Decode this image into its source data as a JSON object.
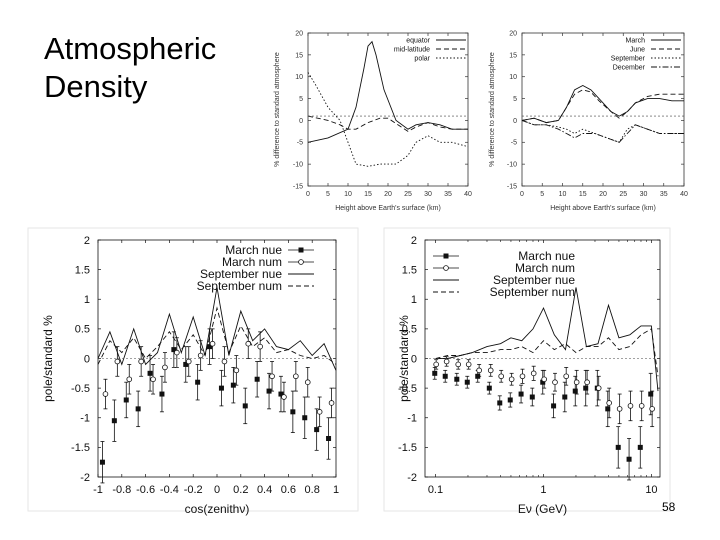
{
  "slide": {
    "title_line1": "Atmospheric",
    "title_line2": "Density",
    "page_number": "58"
  },
  "chart_data": [
    {
      "id": "latitude",
      "type": "line",
      "title": "",
      "xlabel": "Height above Earth's surface (km)",
      "ylabel": "% difference to standard atmosphere",
      "xlim": [
        0,
        40
      ],
      "ylim": [
        -15,
        20
      ],
      "xticks": [
        0,
        5,
        10,
        15,
        20,
        25,
        30,
        35,
        40
      ],
      "yticks": [
        -15,
        -10,
        -5,
        0,
        5,
        10,
        15,
        20
      ],
      "legend_position": "top-right",
      "series": [
        {
          "name": "equator",
          "style": "solid",
          "x": [
            0,
            5,
            10,
            12,
            14,
            15,
            16,
            17,
            19,
            22,
            25,
            27,
            30,
            33,
            36,
            40
          ],
          "y": [
            -5,
            -4,
            -2,
            3,
            12,
            17,
            18,
            15,
            7,
            0,
            -2,
            -1,
            -0.5,
            -1,
            -2,
            -2
          ]
        },
        {
          "name": "mid-latitude",
          "style": "dashed",
          "x": [
            0,
            5,
            8,
            10,
            12,
            15,
            18,
            20,
            25,
            27,
            30,
            33,
            36,
            40
          ],
          "y": [
            1,
            0,
            -1,
            -2,
            -2,
            -0.5,
            0.5,
            0.5,
            -2.5,
            -1.5,
            -0.5,
            -1.5,
            -2,
            -2
          ]
        },
        {
          "name": "polar",
          "style": "dotted",
          "x": [
            0,
            2,
            5,
            8,
            10,
            12,
            15,
            18,
            22,
            25,
            27,
            30,
            33,
            36,
            40
          ],
          "y": [
            11,
            8,
            3,
            0,
            -5,
            -10,
            -10.5,
            -10,
            -10,
            -8,
            -5,
            -3.5,
            -5,
            -5,
            -6
          ]
        },
        {
          "name": "",
          "style": "reference",
          "x": [
            0,
            40
          ],
          "y": [
            1,
            1
          ]
        }
      ]
    },
    {
      "id": "seasonal",
      "type": "line",
      "title": "",
      "xlabel": "Height above Earth's surface (km)",
      "ylabel": "% difference to standard atmosphere",
      "xlim": [
        0,
        40
      ],
      "ylim": [
        -15,
        20
      ],
      "xticks": [
        0,
        5,
        10,
        15,
        20,
        25,
        30,
        35,
        40
      ],
      "yticks": [
        -15,
        -10,
        -5,
        0,
        5,
        10,
        15,
        20
      ],
      "legend_position": "top-right",
      "series": [
        {
          "name": "March",
          "style": "solid",
          "x": [
            0,
            3,
            6,
            9,
            11,
            13,
            15,
            17,
            19,
            22,
            24,
            26,
            28,
            31,
            34,
            37,
            40
          ],
          "y": [
            0,
            0.5,
            -0.5,
            0,
            3,
            7,
            8,
            7,
            5,
            2,
            1,
            2,
            4,
            5,
            5,
            4.5,
            4.5
          ]
        },
        {
          "name": "June",
          "style": "dashed",
          "x": [
            0,
            3,
            6,
            9,
            11,
            13,
            15,
            17,
            19,
            22,
            24,
            26,
            28,
            31,
            34,
            37,
            40
          ],
          "y": [
            0,
            0.5,
            -0.5,
            0,
            3,
            6,
            7,
            6.5,
            4.5,
            2,
            0.5,
            2,
            4,
            5.5,
            6,
            6,
            6
          ]
        },
        {
          "name": "September",
          "style": "dotted",
          "x": [
            0,
            3,
            6,
            9,
            11,
            13,
            15,
            18,
            21,
            24,
            26,
            28,
            31,
            34,
            37,
            40
          ],
          "y": [
            0,
            -1,
            -1,
            -1.5,
            -2,
            -3,
            -2,
            -3,
            -4,
            -5,
            -2,
            -1,
            -2,
            -3,
            -3,
            -3
          ]
        },
        {
          "name": "December",
          "style": "dashdot",
          "x": [
            0,
            3,
            6,
            9,
            11,
            13,
            15,
            18,
            21,
            24,
            26,
            28,
            31,
            34,
            37,
            40
          ],
          "y": [
            0,
            -1,
            -1,
            -2,
            -3,
            -4,
            -3,
            -3,
            -4,
            -5,
            -3,
            -1,
            -2,
            -3,
            -3,
            -3
          ]
        },
        {
          "name": "",
          "style": "reference",
          "x": [
            0,
            40
          ],
          "y": [
            1,
            1
          ]
        }
      ]
    },
    {
      "id": "zenith",
      "type": "line",
      "title": "",
      "xlabel": "cos(zenithν)",
      "ylabel": "pole/standard %",
      "xlim": [
        -1,
        1
      ],
      "ylim": [
        -2,
        2
      ],
      "xticks": [
        -1,
        -0.8,
        -0.6,
        -0.4,
        -0.2,
        0,
        0.2,
        0.4,
        0.6,
        0.8,
        1
      ],
      "xticklabels": [
        "-1",
        "-0.8",
        "-0.6",
        "-0.4",
        "-0.2",
        "0",
        "0.2",
        "0.4",
        "0.6",
        "0.8",
        "1"
      ],
      "yticks": [
        -2,
        -1.5,
        -1,
        -0.5,
        0,
        0.5,
        1,
        1.5,
        2
      ],
      "yticklabels": [
        "-2",
        "-1.5",
        "-1",
        "-0.5",
        "0",
        "0.5",
        "1",
        "1.5",
        "2"
      ],
      "legend_position": "top-right",
      "series": [
        {
          "name": "March nue",
          "style": "points-filled",
          "x": [
            -0.95,
            -0.85,
            -0.75,
            -0.65,
            -0.55,
            -0.45,
            -0.35,
            -0.25,
            -0.15,
            -0.05,
            0.05,
            0.15,
            0.25,
            0.35,
            0.45,
            0.55,
            0.65,
            0.75,
            0.85,
            0.95
          ],
          "y": [
            -1.75,
            -1.05,
            -0.7,
            -0.85,
            -0.25,
            -0.6,
            0.15,
            -0.1,
            -0.4,
            0.2,
            -0.5,
            -0.45,
            -0.8,
            -0.35,
            -0.55,
            -0.6,
            -0.9,
            -1.0,
            -1.2,
            -1.35
          ],
          "err": [
            0.35,
            0.35,
            0.3,
            0.3,
            0.3,
            0.3,
            0.3,
            0.3,
            0.3,
            0.3,
            0.3,
            0.3,
            0.3,
            0.3,
            0.3,
            0.3,
            0.35,
            0.35,
            0.35,
            0.35
          ]
        },
        {
          "name": "March num",
          "style": "points-open",
          "x": [
            -0.95,
            -0.85,
            -0.75,
            -0.65,
            -0.55,
            -0.45,
            -0.35,
            -0.25,
            -0.15,
            -0.05,
            0.05,
            0.15,
            0.25,
            0.35,
            0.45,
            0.55,
            0.65,
            0.75,
            0.85,
            0.95
          ],
          "y": [
            -0.6,
            -0.05,
            -0.35,
            -0.05,
            -0.35,
            -0.15,
            0.1,
            -0.05,
            0.05,
            0.25,
            -0.05,
            -0.2,
            0.25,
            0.2,
            -0.3,
            -0.65,
            -0.3,
            -0.4,
            -0.9,
            -0.75
          ],
          "err": [
            0.25,
            0.25,
            0.25,
            0.25,
            0.25,
            0.25,
            0.25,
            0.25,
            0.25,
            0.25,
            0.25,
            0.25,
            0.25,
            0.25,
            0.25,
            0.25,
            0.25,
            0.25,
            0.25,
            0.25
          ]
        },
        {
          "name": "September nue",
          "style": "solid",
          "x": [
            -1,
            -0.9,
            -0.8,
            -0.7,
            -0.6,
            -0.5,
            -0.4,
            -0.3,
            -0.2,
            -0.1,
            0,
            0.1,
            0.2,
            0.3,
            0.4,
            0.5,
            0.6,
            0.7,
            0.8,
            0.9,
            1
          ],
          "y": [
            0,
            0.45,
            -0.1,
            0.5,
            -0.1,
            0.1,
            0.75,
            0.1,
            0.7,
            0.05,
            1.2,
            0.05,
            0.8,
            0.3,
            0.5,
            0.2,
            0.15,
            0.3,
            0.05,
            0.25,
            -0.2
          ]
        },
        {
          "name": "September num",
          "style": "dashed",
          "x": [
            -1,
            -0.9,
            -0.8,
            -0.7,
            -0.6,
            -0.5,
            -0.4,
            -0.3,
            -0.2,
            -0.1,
            0,
            0.1,
            0.2,
            0.3,
            0.4,
            0.5,
            0.6,
            0.7,
            0.8,
            0.9,
            1
          ],
          "y": [
            -0.1,
            0.3,
            0.1,
            0.35,
            0.0,
            0.2,
            0.45,
            0.15,
            0.4,
            0.05,
            0.85,
            0.1,
            0.55,
            0.2,
            0.35,
            0.1,
            0.15,
            0.05,
            0.0,
            0.05,
            -0.1
          ]
        },
        {
          "name": "",
          "style": "reference",
          "x": [
            -1,
            1
          ],
          "y": [
            0,
            0
          ]
        }
      ]
    },
    {
      "id": "energy",
      "type": "line",
      "title": "",
      "xlabel": "Eν   (GeV)",
      "ylabel": "pole/standard %",
      "xscale": "log",
      "xlim": [
        0.08,
        12
      ],
      "ylim": [
        -2,
        2
      ],
      "xticks": [
        0.1,
        1,
        10
      ],
      "xticklabels": [
        "0.1",
        "1",
        "10"
      ],
      "yticks": [
        -2,
        -1.5,
        -1,
        -0.5,
        0,
        0.5,
        1,
        1.5,
        2
      ],
      "yticklabels": [
        "-2",
        "-1.5",
        "-1",
        "-0.5",
        "0",
        "0.5",
        "1",
        "1.5",
        "2"
      ],
      "legend_position": "top-left",
      "series": [
        {
          "name": "March nue",
          "style": "points-filled",
          "x": [
            0.1,
            0.125,
            0.16,
            0.2,
            0.25,
            0.32,
            0.4,
            0.5,
            0.63,
            0.8,
            1.0,
            1.26,
            1.6,
            2.0,
            2.5,
            3.2,
            4.0,
            5.0,
            6.3,
            8.0,
            10.0
          ],
          "y": [
            -0.25,
            -0.3,
            -0.35,
            -0.4,
            -0.3,
            -0.5,
            -0.75,
            -0.7,
            -0.6,
            -0.65,
            -0.4,
            -0.8,
            -0.65,
            -0.55,
            -0.5,
            -0.5,
            -0.85,
            -1.5,
            -1.7,
            -1.5,
            -0.6
          ],
          "err": [
            0.1,
            0.1,
            0.1,
            0.1,
            0.1,
            0.1,
            0.12,
            0.12,
            0.15,
            0.15,
            0.2,
            0.2,
            0.25,
            0.25,
            0.3,
            0.3,
            0.3,
            0.35,
            0.35,
            0.35,
            0.35
          ]
        },
        {
          "name": "March num",
          "style": "points-open",
          "x": [
            0.1,
            0.125,
            0.16,
            0.2,
            0.25,
            0.32,
            0.4,
            0.5,
            0.63,
            0.8,
            1.0,
            1.26,
            1.6,
            2.0,
            2.5,
            3.2,
            4.0,
            5.0,
            6.3,
            8.0,
            10.0
          ],
          "y": [
            -0.1,
            -0.05,
            -0.1,
            -0.1,
            -0.2,
            -0.2,
            -0.3,
            -0.35,
            -0.3,
            -0.25,
            -0.35,
            -0.4,
            -0.3,
            -0.4,
            -0.4,
            -0.5,
            -0.75,
            -0.85,
            -0.8,
            -0.8,
            -0.85
          ],
          "err": [
            0.08,
            0.08,
            0.08,
            0.08,
            0.1,
            0.1,
            0.1,
            0.1,
            0.12,
            0.12,
            0.15,
            0.15,
            0.15,
            0.2,
            0.2,
            0.2,
            0.25,
            0.25,
            0.25,
            0.25,
            0.3
          ]
        },
        {
          "name": "September nue",
          "style": "solid",
          "x": [
            0.1,
            0.13,
            0.17,
            0.22,
            0.3,
            0.4,
            0.5,
            0.63,
            0.8,
            1.0,
            1.26,
            1.6,
            2.0,
            2.5,
            3.2,
            4.0,
            5.0,
            6.3,
            8.0,
            10.0,
            11.5
          ],
          "y": [
            0.0,
            0.0,
            0.05,
            0.1,
            0.2,
            0.25,
            0.35,
            0.3,
            0.5,
            0.85,
            0.4,
            0.15,
            1.2,
            0.2,
            0.25,
            0.9,
            0.35,
            0.4,
            0.55,
            0.55,
            -0.55
          ]
        },
        {
          "name": "September num",
          "style": "dashed",
          "x": [
            0.1,
            0.13,
            0.17,
            0.22,
            0.3,
            0.4,
            0.5,
            0.63,
            0.8,
            1.0,
            1.26,
            1.6,
            2.0,
            2.5,
            3.2,
            4.0,
            5.0,
            6.3,
            8.0,
            10.0,
            11.5
          ],
          "y": [
            0.0,
            0.05,
            0.05,
            0.1,
            0.1,
            0.15,
            0.15,
            0.2,
            0.1,
            0.3,
            0.15,
            0.25,
            0.1,
            0.2,
            0.2,
            0.35,
            0.15,
            0.2,
            0.4,
            0.5,
            -0.3
          ]
        },
        {
          "name": "",
          "style": "reference",
          "x": [
            0.08,
            12
          ],
          "y": [
            0,
            0
          ]
        }
      ]
    }
  ]
}
